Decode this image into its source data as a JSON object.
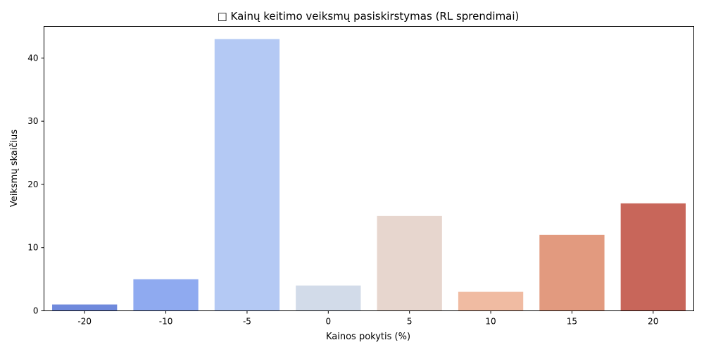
{
  "chart_data": {
    "type": "bar",
    "title": "Kainų keitimo veiksmų pasiskirstymas (RL sprendimai)",
    "title_icon": "missing-glyph-box",
    "xlabel": "Kainos pokytis (%)",
    "ylabel": "Veiksmų skaičius",
    "categories": [
      "-20",
      "-10",
      "-5",
      "0",
      "5",
      "10",
      "15",
      "20"
    ],
    "values": [
      1,
      5,
      43,
      4,
      15,
      3,
      12,
      17
    ],
    "colors": [
      "#6f89dc",
      "#8faaf0",
      "#b4c9f4",
      "#d2dbe9",
      "#e7d6ce",
      "#f0bba2",
      "#e29a7f",
      "#c8665a"
    ],
    "ylim": [
      0,
      45
    ],
    "yticks": [
      0,
      10,
      20,
      30,
      40
    ],
    "grid": false,
    "legend": false
  }
}
